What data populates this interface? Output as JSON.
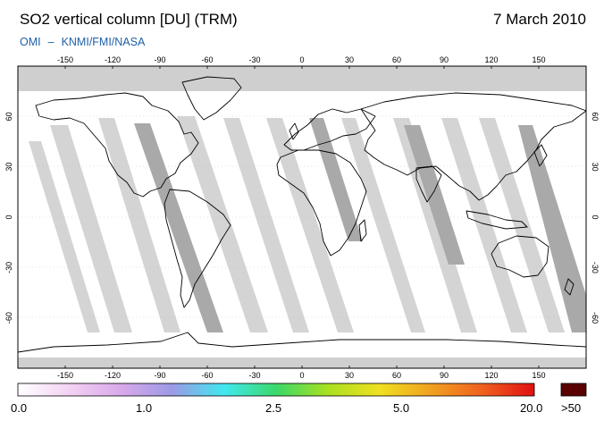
{
  "header": {
    "title": "SO2 vertical column [DU] (TRM)",
    "date": "7 March 2010",
    "credit_left": "OMI",
    "credit_dash": "–",
    "credit_right": "KNMI/FMI/NASA"
  },
  "map": {
    "projection": "equirectangular",
    "lon_range": [
      -180,
      180
    ],
    "lat_range": [
      -90,
      90
    ],
    "lon_ticks": [
      "-150",
      "-120",
      "-90",
      "-60",
      "-30",
      "0",
      "30",
      "60",
      "90",
      "120",
      "150"
    ],
    "lat_ticks_left": [
      "60",
      "30",
      "0",
      "-30",
      "-60"
    ],
    "lat_ticks_right": [
      "60",
      "30",
      "0",
      "-30",
      "-60"
    ],
    "colors": {
      "no_data": "#cfcfcf",
      "swath_gap_light": "#d4d4d4",
      "swath_gap_dark": "#a9a9a9",
      "coastline": "#000000"
    }
  },
  "colorbar": {
    "labels": [
      "0.0",
      "1.0",
      "2.5",
      "5.0",
      "20.0",
      ">50"
    ],
    "overflow_color": "#5a0000",
    "gradient_stops": [
      "#ffffff",
      "#f3d2f3",
      "#d9a8ea",
      "#9a9ae6",
      "#40e8f0",
      "#3ad86a",
      "#a8e020",
      "#f0e020",
      "#f0a020",
      "#f06020",
      "#e01010"
    ]
  }
}
